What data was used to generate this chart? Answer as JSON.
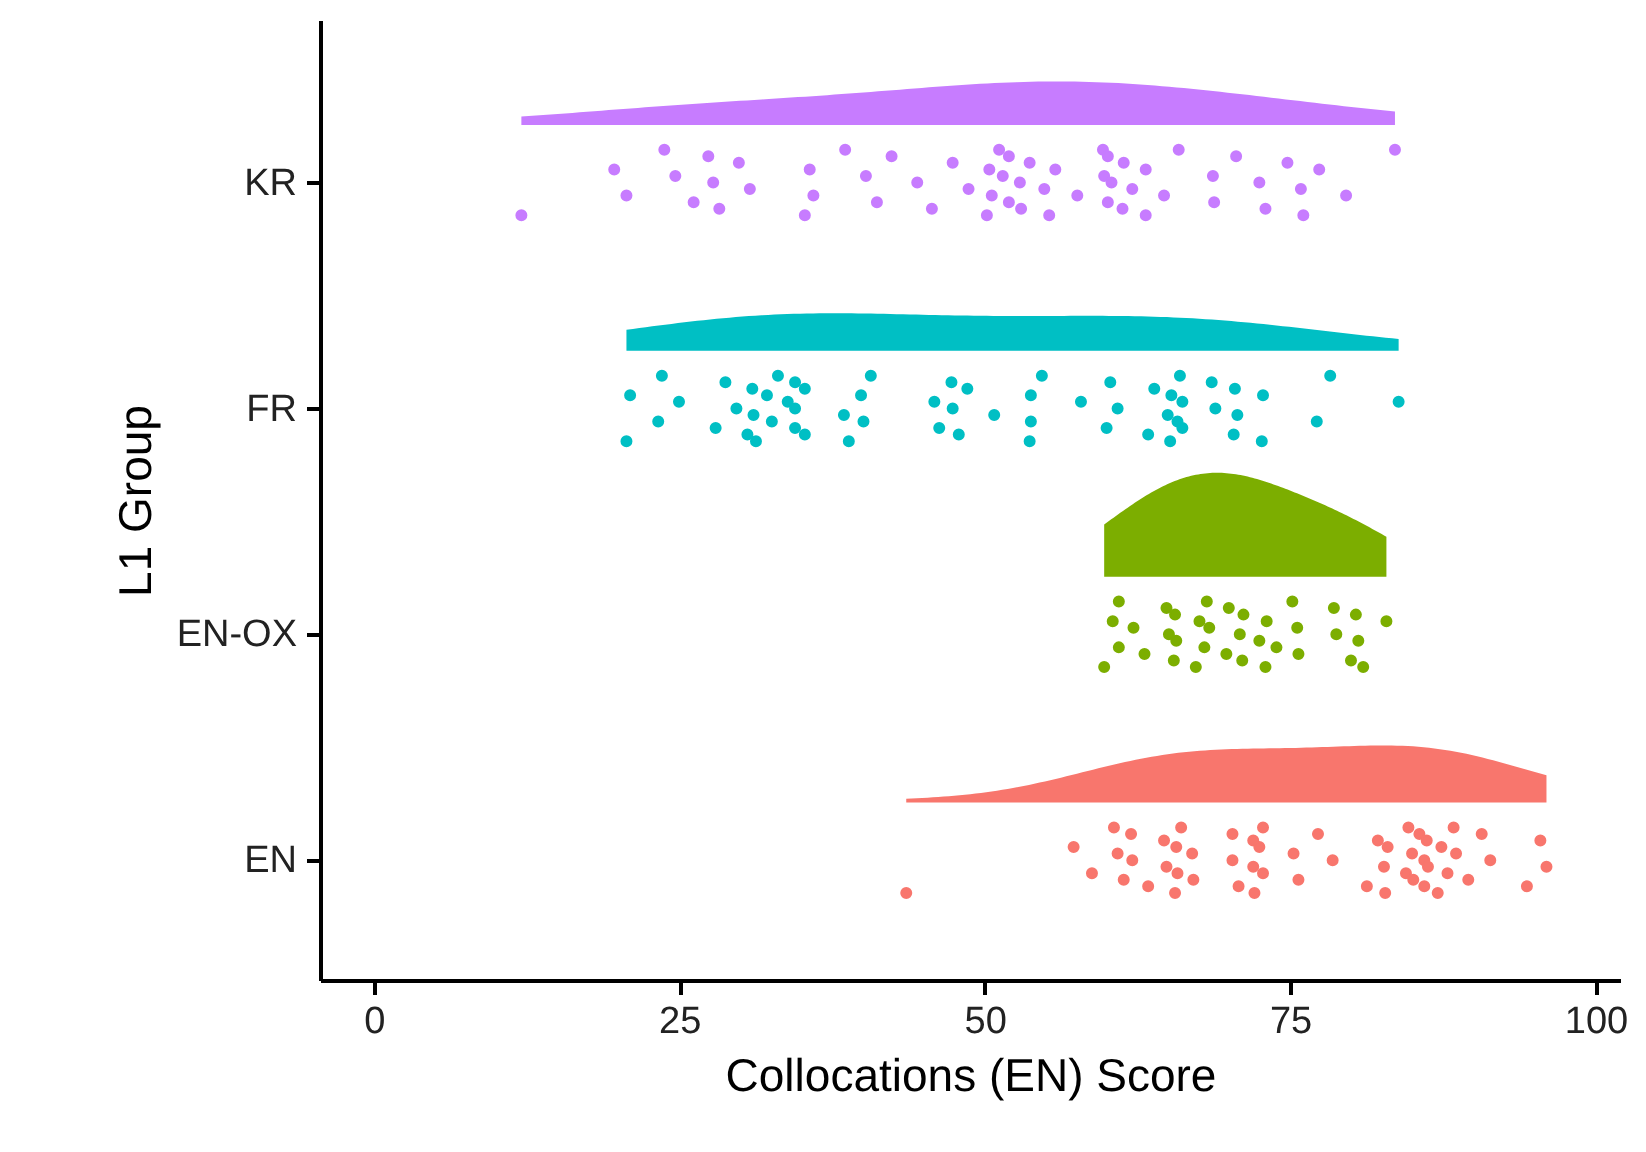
{
  "chart_data": {
    "type": "scatter",
    "orientation": "horizontal",
    "xlabel": "Collocations (EN) Score",
    "ylabel": "L1 Group",
    "categories": [
      "KR",
      "FR",
      "EN-OX",
      "EN"
    ],
    "xlim": [
      -4.4,
      102
    ],
    "xticks": [
      0,
      25,
      50,
      75,
      100
    ],
    "grid": false,
    "marker": "circle",
    "series": [
      {
        "color": "#c77cff",
        "x": [
          "KR",
          "KR",
          "KR",
          "KR",
          "KR",
          "KR",
          "KR",
          "KR",
          "KR",
          "KR",
          "KR",
          "KR",
          "KR",
          "KR",
          "KR",
          "KR",
          "KR",
          "KR",
          "KR",
          "KR",
          "KR",
          "KR",
          "KR",
          "KR",
          "KR",
          "KR",
          "KR",
          "KR",
          "KR",
          "KR",
          "KR",
          "KR",
          "KR",
          "KR",
          "KR",
          "KR",
          "KR",
          "KR",
          "KR",
          "KR",
          "KR",
          "KR",
          "KR",
          "KR",
          "KR",
          "KR",
          "KR",
          "KR",
          "KR",
          "KR",
          "KR",
          "KR",
          "KR",
          "KR",
          "KR",
          "KR",
          "KR",
          "KR",
          "KR"
        ],
        "values": [
          12,
          19.6,
          20.6,
          23.7,
          24.6,
          26.1,
          27.3,
          27.7,
          28.2,
          29.8,
          30.7,
          35.2,
          35.6,
          35.9,
          38.5,
          40.2,
          41.1,
          42.3,
          44.4,
          45.6,
          47.3,
          48.6,
          50.1,
          50.3,
          50.5,
          51.1,
          51.4,
          51.9,
          51.9,
          52.8,
          52.9,
          53.6,
          54.8,
          55.2,
          55.7,
          57.5,
          59.6,
          59.7,
          60.0,
          60.0,
          60.3,
          61.2,
          61.3,
          62.0,
          63.1,
          63.1,
          64.6,
          65.8,
          68.6,
          68.7,
          70.5,
          72.4,
          72.9,
          74.7,
          75.8,
          76.0,
          77.3,
          79.5,
          83.5
        ]
      },
      {
        "color": "#00bfc4",
        "x": [
          "FR",
          "FR",
          "FR",
          "FR",
          "FR",
          "FR",
          "FR",
          "FR",
          "FR",
          "FR",
          "FR",
          "FR",
          "FR",
          "FR",
          "FR",
          "FR",
          "FR",
          "FR",
          "FR",
          "FR",
          "FR",
          "FR",
          "FR",
          "FR",
          "FR",
          "FR",
          "FR",
          "FR",
          "FR",
          "FR",
          "FR",
          "FR",
          "FR",
          "FR",
          "FR",
          "FR",
          "FR",
          "FR",
          "FR",
          "FR",
          "FR",
          "FR",
          "FR",
          "FR",
          "FR",
          "FR",
          "FR",
          "FR",
          "FR",
          "FR",
          "FR",
          "FR",
          "FR",
          "FR",
          "FR",
          "FR",
          "FR",
          "FR",
          "FR",
          "FR"
        ],
        "values": [
          20.6,
          20.9,
          23.2,
          23.5,
          24.9,
          27.9,
          28.7,
          29.6,
          30.5,
          30.9,
          31.0,
          31.2,
          32.1,
          32.5,
          33.0,
          33.8,
          34.4,
          34.4,
          34.4,
          35.2,
          35.2,
          38.4,
          38.8,
          39.8,
          40.0,
          40.6,
          45.8,
          46.2,
          47.2,
          47.3,
          47.8,
          48.5,
          50.7,
          53.6,
          53.7,
          53.7,
          54.6,
          57.8,
          59.9,
          60.2,
          60.8,
          63.3,
          63.8,
          64.9,
          65.1,
          65.2,
          65.7,
          65.9,
          66.1,
          66.1,
          68.5,
          68.8,
          70.3,
          70.4,
          70.6,
          72.6,
          72.7,
          77.1,
          78.2,
          83.8
        ]
      },
      {
        "color": "#7cae00",
        "x": [
          "EN-OX",
          "EN-OX",
          "EN-OX",
          "EN-OX",
          "EN-OX",
          "EN-OX",
          "EN-OX",
          "EN-OX",
          "EN-OX",
          "EN-OX",
          "EN-OX",
          "EN-OX",
          "EN-OX",
          "EN-OX",
          "EN-OX",
          "EN-OX",
          "EN-OX",
          "EN-OX",
          "EN-OX",
          "EN-OX",
          "EN-OX",
          "EN-OX",
          "EN-OX",
          "EN-OX",
          "EN-OX",
          "EN-OX",
          "EN-OX",
          "EN-OX",
          "EN-OX",
          "EN-OX",
          "EN-OX",
          "EN-OX",
          "EN-OX",
          "EN-OX",
          "EN-OX"
        ],
        "values": [
          59.7,
          60.4,
          60.9,
          60.9,
          62.1,
          63.0,
          64.8,
          65.0,
          65.4,
          65.5,
          65.6,
          67.2,
          67.5,
          67.9,
          68.1,
          68.3,
          69.7,
          69.9,
          70.8,
          71.0,
          71.1,
          72.4,
          72.9,
          73.0,
          73.8,
          75.1,
          75.5,
          75.6,
          78.5,
          78.7,
          79.9,
          80.3,
          80.5,
          80.9,
          82.8
        ]
      },
      {
        "color": "#f8766d",
        "x": [
          "EN",
          "EN",
          "EN",
          "EN",
          "EN",
          "EN",
          "EN",
          "EN",
          "EN",
          "EN",
          "EN",
          "EN",
          "EN",
          "EN",
          "EN",
          "EN",
          "EN",
          "EN",
          "EN",
          "EN",
          "EN",
          "EN",
          "EN",
          "EN",
          "EN",
          "EN",
          "EN",
          "EN",
          "EN",
          "EN",
          "EN",
          "EN",
          "EN",
          "EN",
          "EN",
          "EN",
          "EN",
          "EN",
          "EN",
          "EN",
          "EN",
          "EN",
          "EN",
          "EN",
          "EN",
          "EN",
          "EN",
          "EN",
          "EN",
          "EN",
          "EN",
          "EN",
          "EN",
          "EN",
          "EN"
        ],
        "values": [
          43.5,
          57.2,
          58.7,
          60.5,
          60.8,
          61.3,
          61.9,
          62.0,
          63.3,
          64.6,
          64.8,
          65.5,
          65.6,
          65.7,
          66.0,
          66.9,
          67.0,
          70.2,
          70.2,
          70.7,
          71.9,
          71.9,
          72.0,
          72.4,
          72.7,
          72.7,
          75.2,
          75.6,
          77.2,
          78.4,
          81.2,
          82.1,
          82.6,
          82.7,
          82.9,
          84.4,
          84.6,
          84.9,
          85.0,
          85.5,
          85.9,
          85.9,
          86.1,
          86.2,
          87.0,
          87.3,
          87.8,
          88.3,
          88.5,
          89.5,
          90.6,
          91.3,
          94.3,
          95.4,
          95.9
        ]
      }
    ]
  }
}
